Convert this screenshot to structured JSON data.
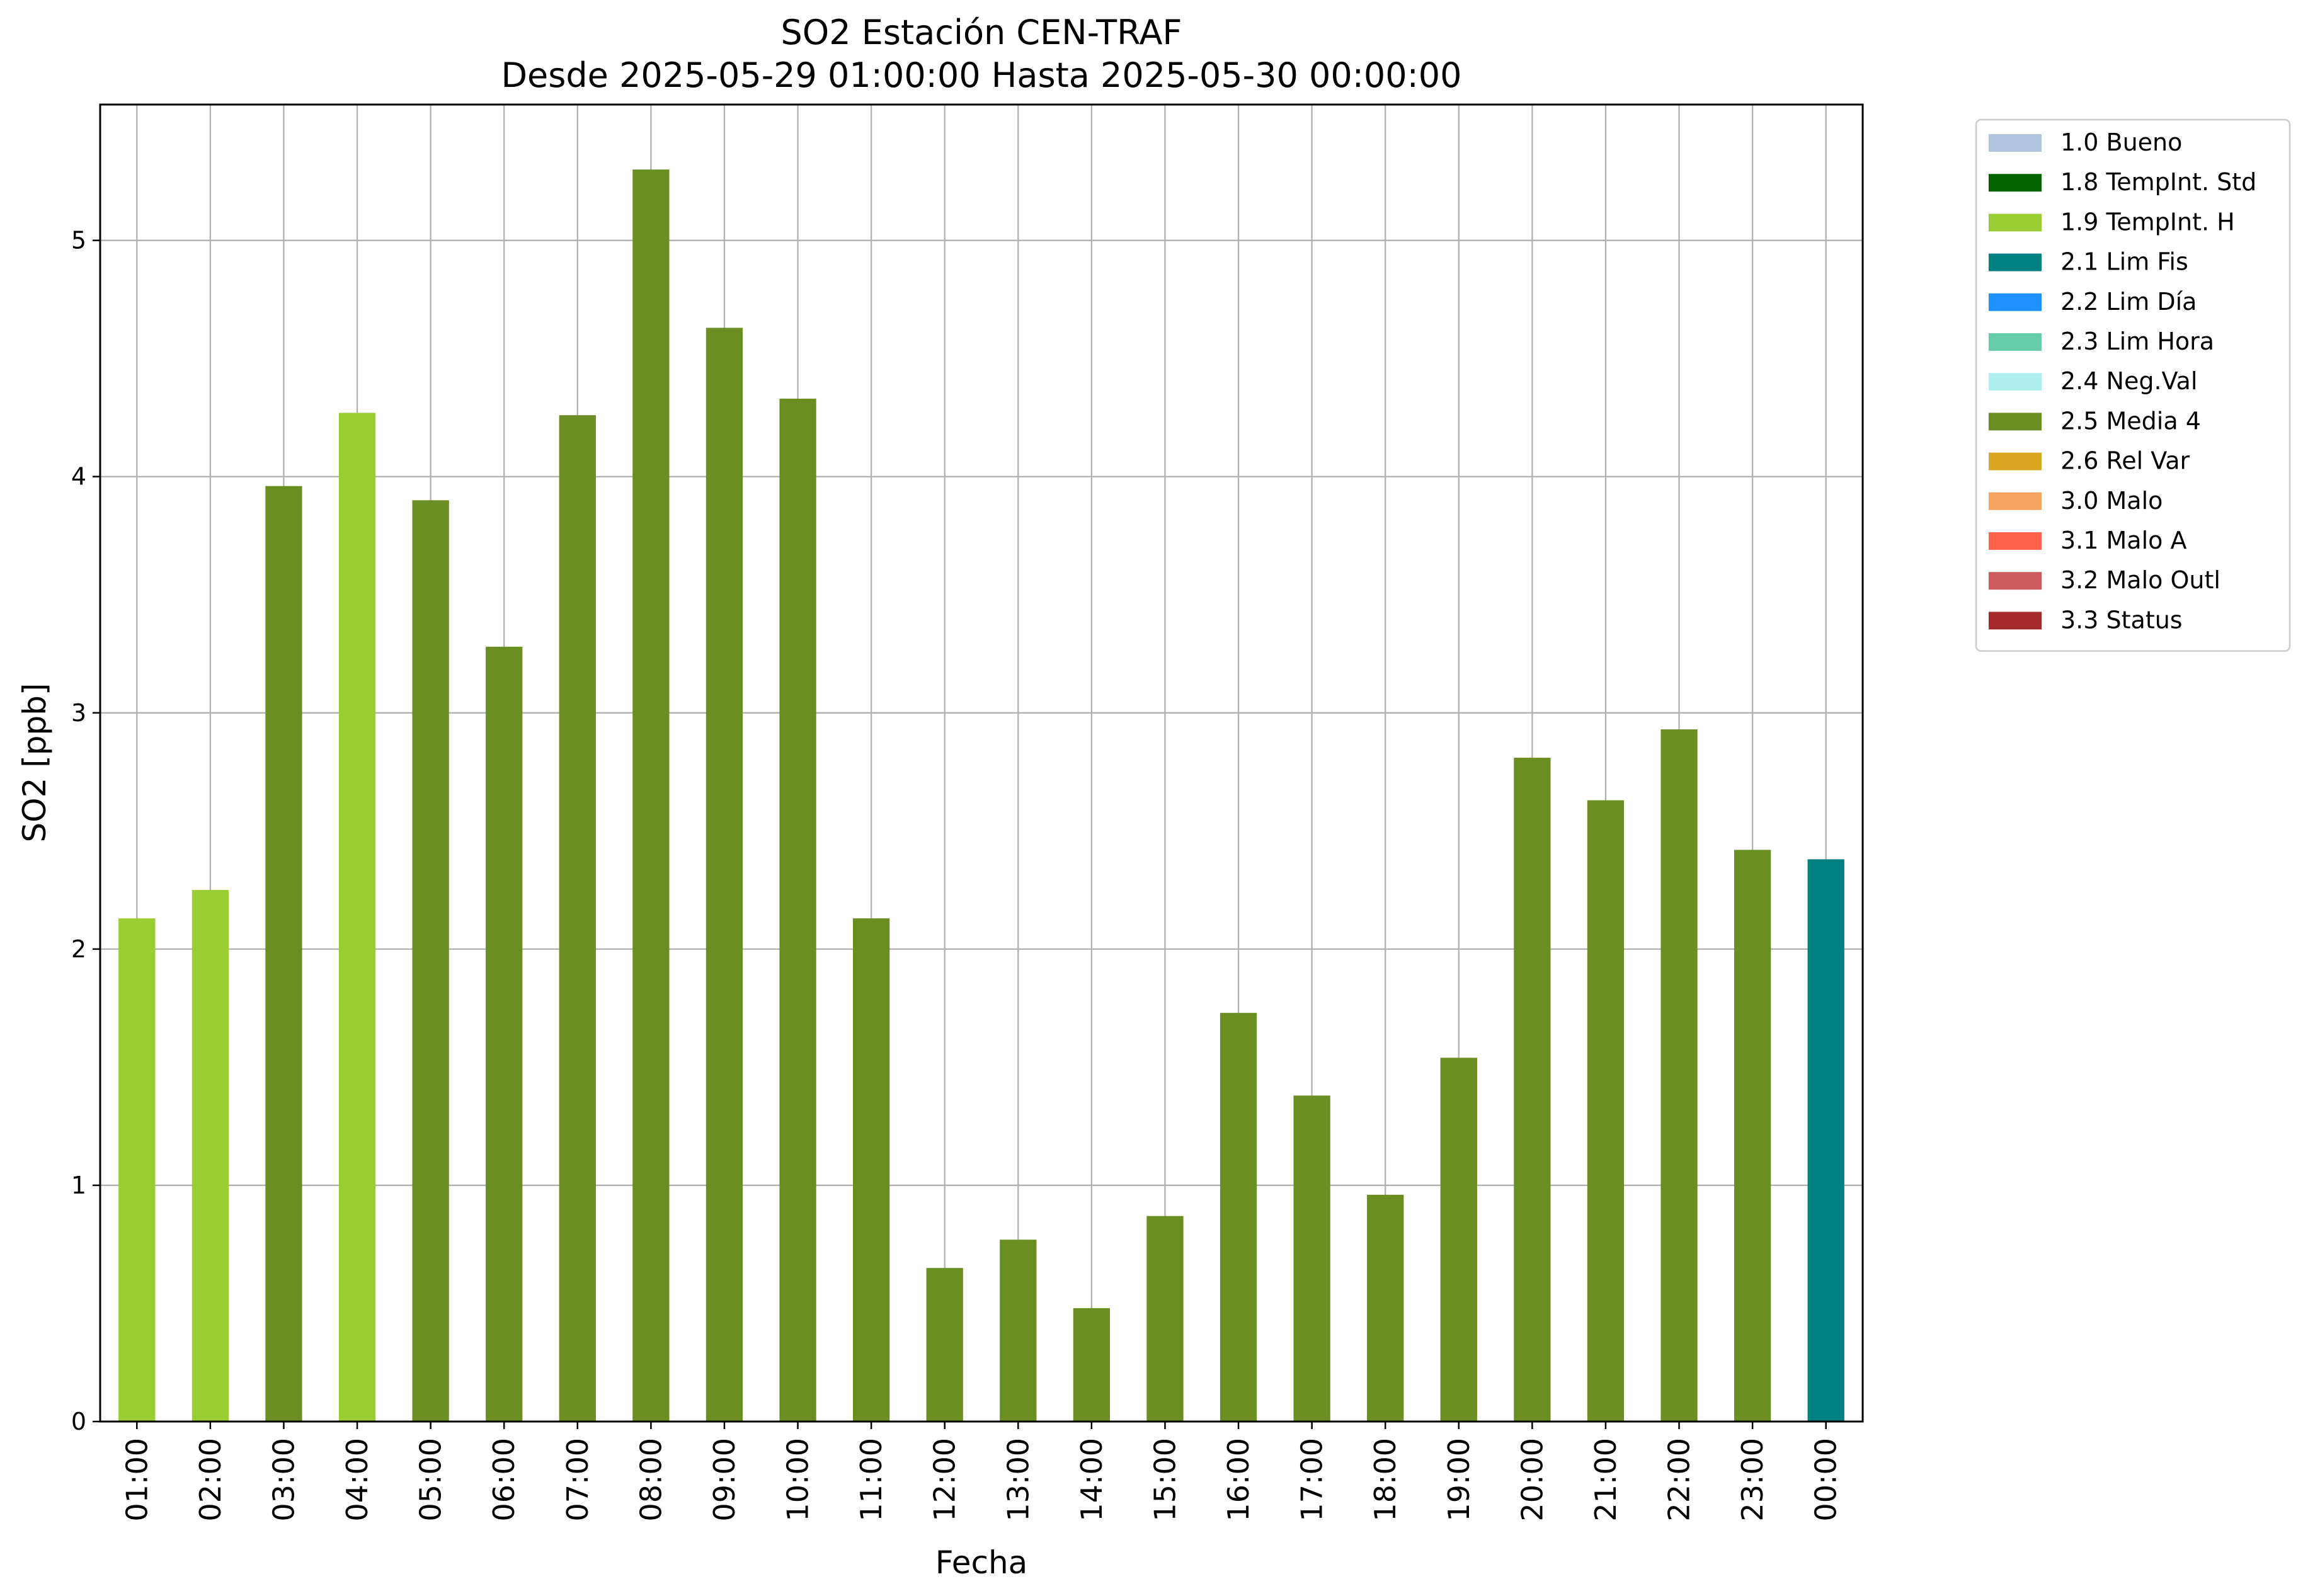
{
  "chart_data": {
    "type": "bar",
    "title": "SO2 Estación CEN-TRAF",
    "subtitle": "Desde 2025-05-29 01:00:00 Hasta 2025-05-30 00:00:00",
    "xlabel": "Fecha",
    "ylabel": "SO2 [ppb]",
    "ylim": [
      0,
      5.575
    ],
    "yticks": [
      0,
      1,
      2,
      3,
      4,
      5
    ],
    "grid": true,
    "legend_position": "outside-top-right",
    "categories": [
      "01:00",
      "02:00",
      "03:00",
      "04:00",
      "05:00",
      "06:00",
      "07:00",
      "08:00",
      "09:00",
      "10:00",
      "11:00",
      "12:00",
      "13:00",
      "14:00",
      "15:00",
      "16:00",
      "17:00",
      "18:00",
      "19:00",
      "20:00",
      "21:00",
      "22:00",
      "23:00",
      "00:00"
    ],
    "values": [
      2.13,
      2.25,
      3.96,
      4.27,
      3.9,
      3.28,
      4.26,
      5.3,
      4.63,
      4.33,
      2.13,
      0.65,
      0.77,
      0.48,
      0.87,
      1.73,
      1.38,
      0.96,
      1.54,
      2.81,
      2.63,
      2.93,
      2.42,
      2.38
    ],
    "flags": [
      "1.9 TempInt. H",
      "1.9 TempInt. H",
      "2.5 Media 4",
      "1.9 TempInt. H",
      "2.5 Media 4",
      "2.5 Media 4",
      "2.5 Media 4",
      "2.5 Media 4",
      "2.5 Media 4",
      "2.5 Media 4",
      "2.5 Media 4",
      "2.5 Media 4",
      "2.5 Media 4",
      "2.5 Media 4",
      "2.5 Media 4",
      "2.5 Media 4",
      "2.5 Media 4",
      "2.5 Media 4",
      "2.5 Media 4",
      "2.5 Media 4",
      "2.5 Media 4",
      "2.5 Media 4",
      "2.5 Media 4",
      "2.1 Lim Fis"
    ],
    "legend": [
      {
        "label": "1.0 Bueno",
        "color": "#b0c4de"
      },
      {
        "label": "1.8 TempInt. Std",
        "color": "#006400"
      },
      {
        "label": "1.9 TempInt. H",
        "color": "#9acd32"
      },
      {
        "label": "2.1 Lim Fis",
        "color": "#008080"
      },
      {
        "label": "2.2 Lim Día",
        "color": "#1e90ff"
      },
      {
        "label": "2.3 Lim Hora",
        "color": "#66cdaa"
      },
      {
        "label": "2.4 Neg.Val",
        "color": "#afeeee"
      },
      {
        "label": "2.5 Media 4",
        "color": "#6b8e23"
      },
      {
        "label": "2.6 Rel Var",
        "color": "#daa520"
      },
      {
        "label": "3.0 Malo",
        "color": "#f4a460"
      },
      {
        "label": "3.1 Malo A",
        "color": "#ff6347"
      },
      {
        "label": "3.2 Malo Outl",
        "color": "#cd5c5c"
      },
      {
        "label": "3.3 Status",
        "color": "#a52a2a"
      }
    ]
  }
}
